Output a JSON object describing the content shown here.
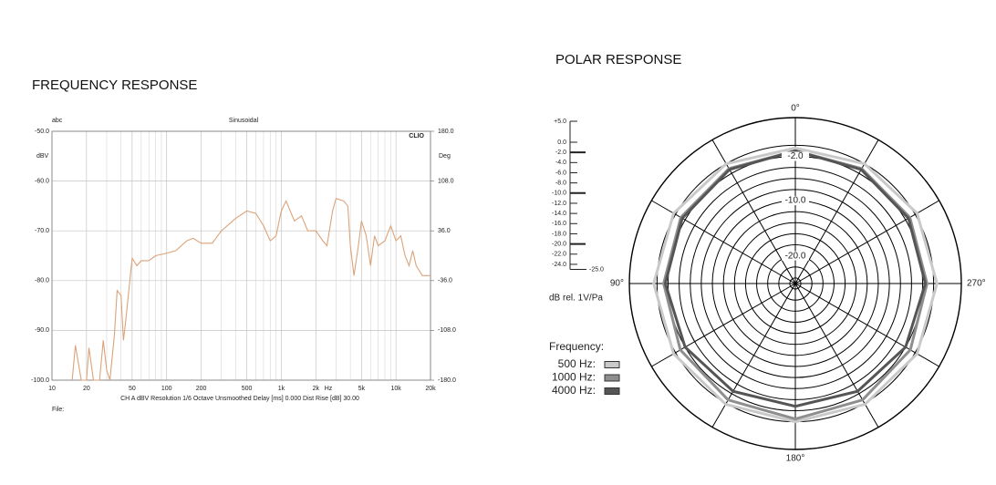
{
  "chart_data": [
    {
      "type": "line",
      "title": "FREQUENCY RESPONSE",
      "top_left": "abc",
      "top_center": "Sinusoidal",
      "brand": "CLIO",
      "ylabel": "dBV",
      "y2label": "Deg",
      "xlabel": "Hz",
      "footer": "CH A   dBV   Resolution 1/6 Octave   Unsmoothed   Delay [ms] 0.000   Dist Rise [dB] 30.00",
      "file_label": "File:",
      "xlog": true,
      "xlim": [
        10,
        20000
      ],
      "ylim": [
        -100,
        -50
      ],
      "y2lim": [
        -180,
        180
      ],
      "xticks": [
        10,
        20,
        50,
        100,
        200,
        500,
        {
          "value": 1000,
          "label": "1k"
        },
        {
          "value": 2000,
          "label": "2k"
        },
        {
          "value": 5000,
          "label": "5k"
        },
        {
          "value": 10000,
          "label": "10k"
        },
        {
          "value": 20000,
          "label": "20k"
        }
      ],
      "xminor": [
        30,
        40,
        60,
        70,
        80,
        90,
        300,
        400,
        600,
        700,
        800,
        900,
        3000,
        4000,
        6000,
        7000,
        8000,
        9000
      ],
      "yticks": [
        {
          "value": -50,
          "label": "-50.0"
        },
        {
          "value": -60,
          "label": "-60.0"
        },
        {
          "value": -70,
          "label": "-70.0"
        },
        {
          "value": -80,
          "label": "-80.0"
        },
        {
          "value": -90,
          "label": "-90.0"
        },
        {
          "value": -100,
          "label": "-100.0"
        }
      ],
      "y2ticks": [
        {
          "value": 180,
          "label": "180.0"
        },
        {
          "value": 108,
          "label": "108.0"
        },
        {
          "value": 36,
          "label": "36.0"
        },
        {
          "value": -36,
          "label": "-36.0"
        },
        {
          "value": -108,
          "label": "-108.0"
        },
        {
          "value": -180,
          "label": "-180.0"
        }
      ],
      "grid": true,
      "color": "#dba37a",
      "x": [
        15,
        16,
        18,
        20,
        21,
        23,
        26,
        28,
        30,
        32,
        35,
        37,
        40,
        42,
        44,
        50,
        55,
        60,
        70,
        80,
        100,
        120,
        150,
        170,
        200,
        250,
        300,
        400,
        500,
        600,
        700,
        800,
        900,
        1000,
        1100,
        1300,
        1500,
        1700,
        2000,
        2300,
        2500,
        2800,
        3000,
        3500,
        3800,
        4000,
        4300,
        4700,
        5000,
        5500,
        6000,
        6500,
        7000,
        8000,
        9000,
        10000,
        11000,
        12000,
        13000,
        14000,
        15000,
        17000,
        20000
      ],
      "values": [
        -100,
        -93,
        -100,
        -100,
        -93.5,
        -100,
        -100,
        -92,
        -98,
        -100,
        -91,
        -82,
        -83,
        -92,
        -88,
        -75.5,
        -77,
        -76,
        -76,
        -75,
        -74.5,
        -74,
        -72,
        -71.5,
        -72.5,
        -72.5,
        -70,
        -67.5,
        -66,
        -66.5,
        -69,
        -72,
        -71,
        -66,
        -64,
        -68,
        -67,
        -70,
        -70,
        -72,
        -73,
        -66,
        -63.5,
        -64,
        -65,
        -73,
        -79,
        -73,
        -68,
        -71,
        -77,
        -71,
        -73,
        -72,
        -69,
        -72,
        -71,
        -75,
        -77,
        -74,
        -77,
        -79,
        -79
      ]
    },
    {
      "type": "polar",
      "title": "POLAR RESPONSE",
      "rlabel": "dB rel. 1V/Pa",
      "legend_title": "Frequency:",
      "rlim": [
        -25,
        5
      ],
      "rticks": [
        {
          "value": 5,
          "label": "+5.0"
        },
        {
          "value": 0,
          "label": "0.0"
        },
        {
          "value": -2,
          "label": "-2.0"
        },
        {
          "value": -4,
          "label": "-4.0"
        },
        {
          "value": -6,
          "label": "-6.0"
        },
        {
          "value": -8,
          "label": "-8.0"
        },
        {
          "value": -10,
          "label": "-10.0"
        },
        {
          "value": -12,
          "label": "-12.0"
        },
        {
          "value": -14,
          "label": "-14.0"
        },
        {
          "value": -16,
          "label": "-16.0"
        },
        {
          "value": -18,
          "label": "-18.0"
        },
        {
          "value": -20,
          "label": "-20.0"
        },
        {
          "value": -22,
          "label": "-22.0"
        },
        {
          "value": -24,
          "label": "-24.0"
        }
      ],
      "rmin_label": {
        "value": -25,
        "label": "-25.0"
      },
      "rlabels": [
        {
          "value": -2,
          "label": "-2.0"
        },
        {
          "value": -10,
          "label": "-10.0"
        },
        {
          "value": -20,
          "label": "-20.0"
        }
      ],
      "angle_grid": [
        0,
        30,
        60,
        90,
        120,
        150,
        180,
        210,
        240,
        270,
        300,
        330
      ],
      "angle_ticks": [
        {
          "value": 0,
          "label": "0°"
        },
        {
          "value": 90,
          "label": "90°"
        },
        {
          "value": 180,
          "label": "180°"
        },
        {
          "value": 270,
          "label": "270°"
        }
      ],
      "angles": [
        0,
        30,
        60,
        90,
        120,
        150,
        180,
        210,
        240,
        270,
        300,
        330
      ],
      "series": [
        {
          "name": "500 Hz:",
          "color": "#c9c9c9",
          "values": [
            -0.5,
            0,
            0.4,
            0.6,
            0.4,
            0.2,
            0,
            0.2,
            0.4,
            0.6,
            0.4,
            0
          ]
        },
        {
          "name": "1000 Hz:",
          "color": "#8e8e8e",
          "values": [
            -1,
            -1,
            -1.1,
            -1.2,
            -1,
            -0.7,
            -0.5,
            -0.7,
            -1,
            -1.2,
            -1.1,
            -1
          ]
        },
        {
          "name": "4000 Hz:",
          "color": "#555555",
          "values": [
            -1,
            -1.2,
            -1.4,
            -1.5,
            -2,
            -2.5,
            -2.8,
            -2.5,
            -2,
            -1.5,
            -1.4,
            -1.2
          ]
        }
      ]
    }
  ]
}
